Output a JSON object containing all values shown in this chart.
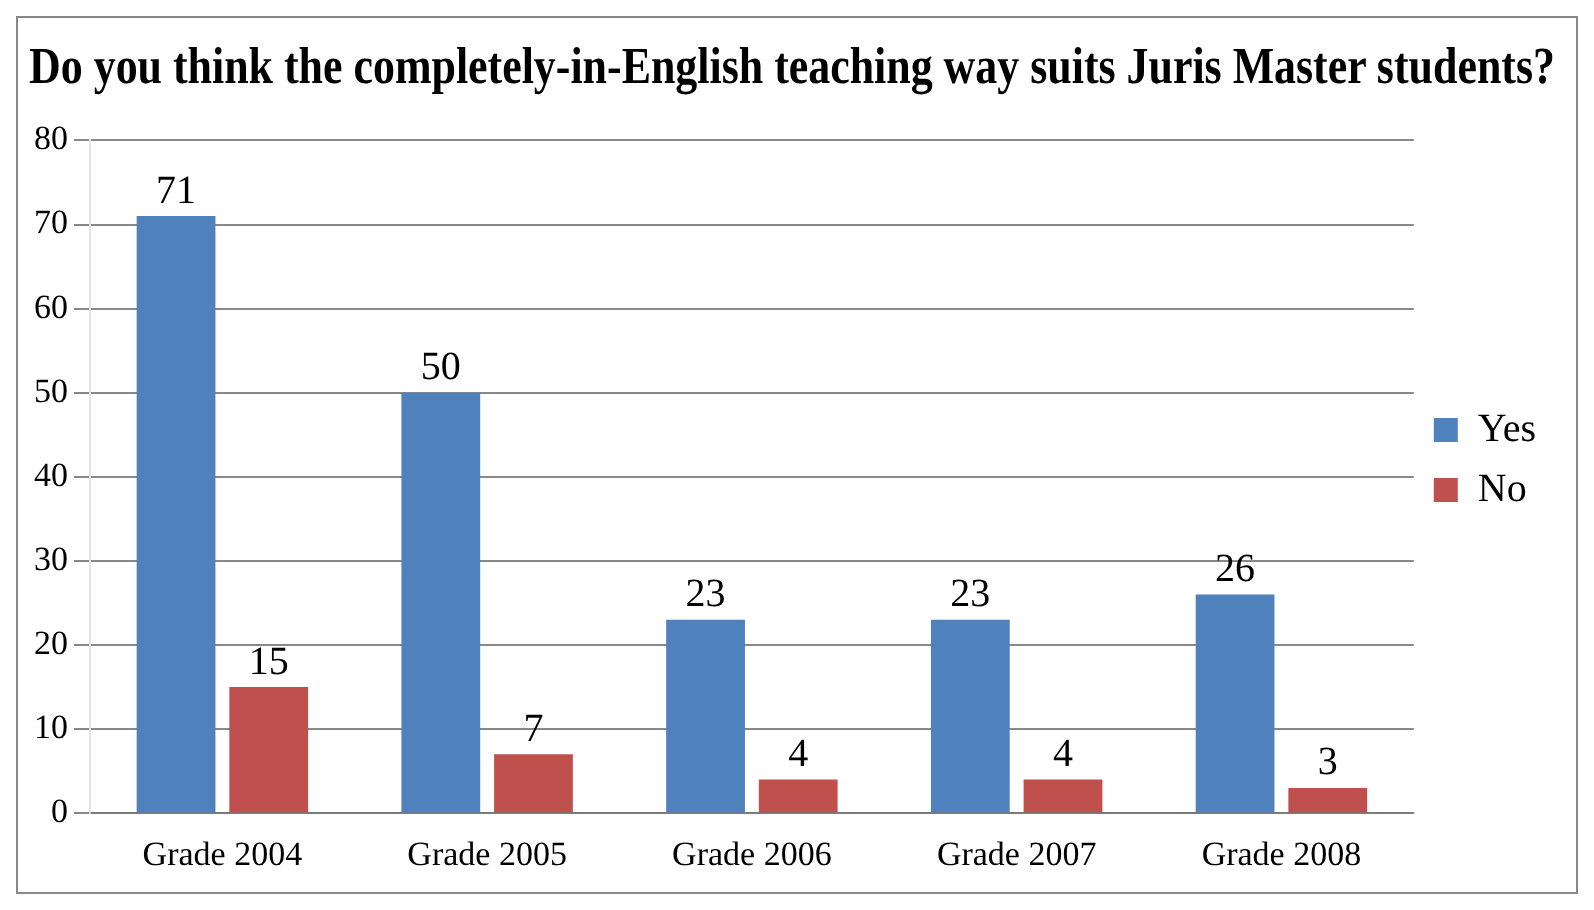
{
  "chart_data": {
    "type": "bar",
    "title": "Do you think the completely-in-English teaching way suits Juris Master students?",
    "categories": [
      "Grade 2004",
      "Grade 2005",
      "Grade 2006",
      "Grade 2007",
      "Grade 2008"
    ],
    "series": [
      {
        "name": "Yes",
        "color": "#4f81bd",
        "values": [
          71,
          50,
          23,
          23,
          26
        ]
      },
      {
        "name": "No",
        "color": "#c0504d",
        "values": [
          15,
          7,
          4,
          4,
          3
        ]
      }
    ],
    "ylim": [
      0,
      80
    ],
    "yticks": [
      0,
      10,
      20,
      30,
      40,
      50,
      60,
      70,
      80
    ],
    "grid": "y",
    "legend": "right",
    "data_labels": true
  }
}
